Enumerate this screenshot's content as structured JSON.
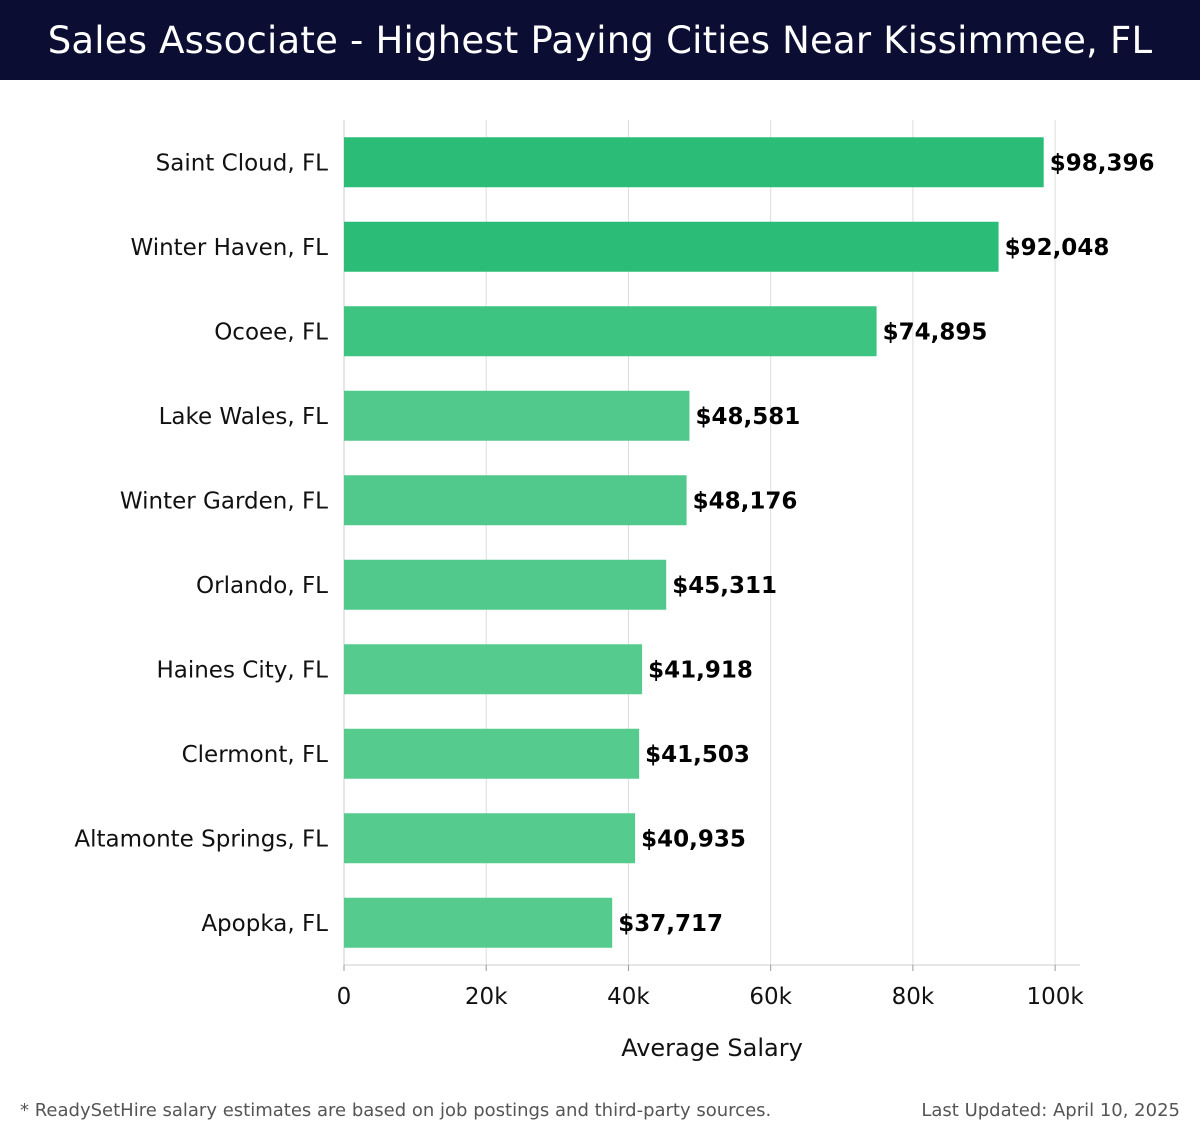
{
  "header": {
    "title": "Sales Associate - Highest Paying Cities Near Kissimmee, FL"
  },
  "chart_data": {
    "type": "bar",
    "orientation": "horizontal",
    "title": "Sales Associate - Highest Paying Cities Near Kissimmee, FL",
    "xlabel": "Average Salary",
    "ylabel": "",
    "xlim": [
      0,
      103500
    ],
    "x_ticks": [
      0,
      20000,
      40000,
      60000,
      80000,
      100000
    ],
    "x_tick_labels": [
      "0",
      "20k",
      "40k",
      "60k",
      "80k",
      "100k"
    ],
    "grid": true,
    "categories": [
      "Saint Cloud, FL",
      "Winter Haven, FL",
      "Ocoee, FL",
      "Lake Wales, FL",
      "Winter Garden, FL",
      "Orlando, FL",
      "Haines City, FL",
      "Clermont, FL",
      "Altamonte Springs, FL",
      "Apopka, FL"
    ],
    "values": [
      98396,
      92048,
      74895,
      48581,
      48176,
      45311,
      41918,
      41503,
      40935,
      37717
    ],
    "value_labels": [
      "$98,396",
      "$92,048",
      "$74,895",
      "$48,581",
      "$48,176",
      "$45,311",
      "$41,918",
      "$41,503",
      "$40,935",
      "$37,717"
    ],
    "bar_colors": [
      "#2bbd78",
      "#2bbd78",
      "#3cc480",
      "#52c98c",
      "#52c98c",
      "#52c98c",
      "#55cb8e",
      "#55cb8e",
      "#55cb8e",
      "#55cb8e"
    ]
  },
  "footer": {
    "note": "* ReadySetHire salary estimates are based on job postings and third-party sources.",
    "updated": "Last Updated: April 10, 2025"
  },
  "colors": {
    "header_bg": "#0b0d33",
    "grid": "#dddddd",
    "text": "#111111"
  }
}
